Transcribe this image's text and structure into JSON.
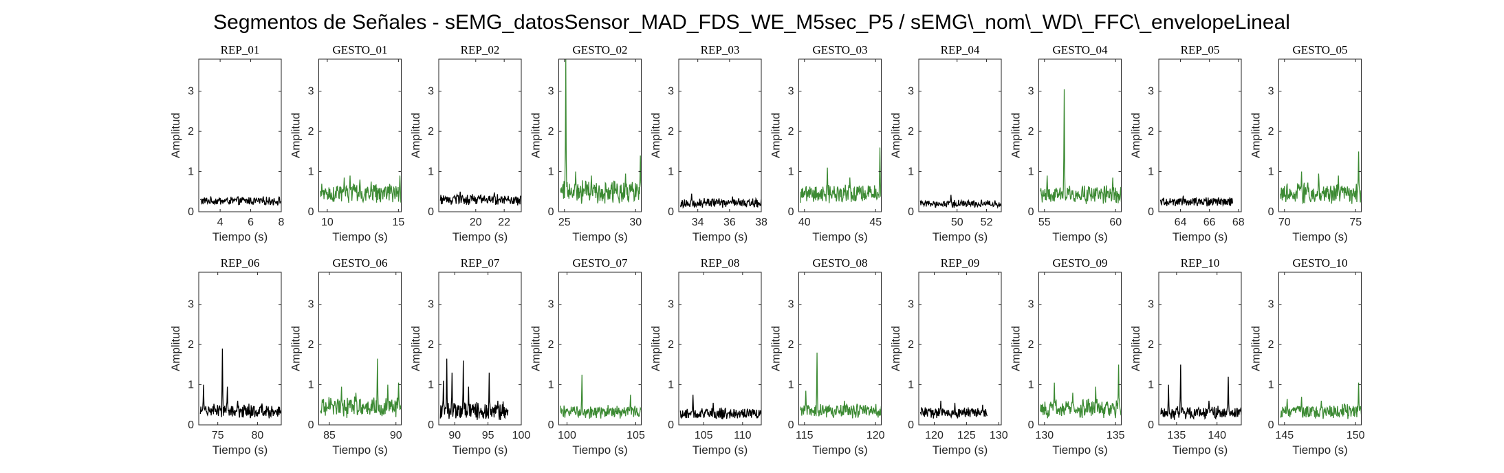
{
  "figure_title": "Segmentos de Señales - sEMG_datosSensor_MAD_FDS_WE_M5sec_P5 / sEMG\\_nom\\_WD\\_FFC\\_envelopeLineal",
  "colors": {
    "rep": "#000000",
    "gesto": "#3c8a33",
    "axis": "#262626"
  },
  "chart_data": [
    {
      "type": "line",
      "title": "REP_01",
      "xlabel": "Tiempo (s)",
      "ylabel": "Amplitud",
      "xlim": [
        2.6,
        8
      ],
      "ylim": [
        0,
        3.8
      ],
      "xticks": [
        4,
        6,
        8
      ],
      "yticks": [
        0,
        1,
        2,
        3
      ],
      "color": "rep",
      "mean": 0.27,
      "jitter": 0.09,
      "x_end": 8,
      "peaks": []
    },
    {
      "type": "line",
      "title": "GESTO_01",
      "xlabel": "Tiempo (s)",
      "ylabel": "Amplitud",
      "xlim": [
        9.4,
        15.2
      ],
      "ylim": [
        0,
        3.8
      ],
      "xticks": [
        10,
        15
      ],
      "yticks": [
        0,
        1,
        2,
        3
      ],
      "color": "gesto",
      "mean": 0.45,
      "jitter": 0.2,
      "x_end": 15.2,
      "peaks": [
        [
          11.2,
          0.85
        ],
        [
          11.6,
          0.9
        ],
        [
          12.3,
          0.8
        ],
        [
          13.1,
          0.75
        ],
        [
          15.1,
          0.9
        ]
      ]
    },
    {
      "type": "line",
      "title": "REP_02",
      "xlabel": "Tiempo (s)",
      "ylabel": "Amplitud",
      "xlim": [
        17.4,
        23.2
      ],
      "ylim": [
        0,
        3.8
      ],
      "xticks": [
        20,
        22
      ],
      "yticks": [
        0,
        1,
        2,
        3
      ],
      "color": "rep",
      "mean": 0.3,
      "jitter": 0.12,
      "x_end": 23.2,
      "peaks": [
        [
          18.9,
          0.5
        ],
        [
          21.3,
          0.48
        ]
      ]
    },
    {
      "type": "line",
      "title": "GESTO_02",
      "xlabel": "Tiempo (s)",
      "ylabel": "Amplitud",
      "xlim": [
        24.6,
        30.4
      ],
      "ylim": [
        0,
        3.8
      ],
      "xticks": [
        25,
        30
      ],
      "yticks": [
        0,
        1,
        2,
        3
      ],
      "color": "gesto",
      "mean": 0.5,
      "jitter": 0.25,
      "x_end": 30.4,
      "peaks": [
        [
          25.1,
          3.8
        ],
        [
          25.8,
          1.0
        ],
        [
          26.9,
          0.9
        ],
        [
          29.3,
          0.95
        ],
        [
          30.35,
          1.4
        ]
      ]
    },
    {
      "type": "line",
      "title": "REP_03",
      "xlabel": "Tiempo (s)",
      "ylabel": "Amplitud",
      "xlim": [
        32.8,
        38
      ],
      "ylim": [
        0,
        3.8
      ],
      "xticks": [
        34,
        36,
        38
      ],
      "yticks": [
        0,
        1,
        2,
        3
      ],
      "color": "rep",
      "mean": 0.22,
      "jitter": 0.1,
      "x_end": 38,
      "peaks": [
        [
          33.6,
          0.45
        ],
        [
          36.2,
          0.38
        ]
      ]
    },
    {
      "type": "line",
      "title": "GESTO_03",
      "xlabel": "Tiempo (s)",
      "ylabel": "Amplitud",
      "xlim": [
        39.6,
        45.4
      ],
      "ylim": [
        0,
        3.8
      ],
      "xticks": [
        40,
        45
      ],
      "yticks": [
        0,
        1,
        2,
        3
      ],
      "color": "gesto",
      "mean": 0.45,
      "jitter": 0.2,
      "x_end": 45.4,
      "peaks": [
        [
          41.6,
          1.1
        ],
        [
          43.2,
          0.85
        ],
        [
          45.3,
          1.6
        ]
      ]
    },
    {
      "type": "line",
      "title": "REP_04",
      "xlabel": "Tiempo (s)",
      "ylabel": "Amplitud",
      "xlim": [
        47.4,
        53
      ],
      "ylim": [
        0,
        3.8
      ],
      "xticks": [
        50,
        52
      ],
      "yticks": [
        0,
        1,
        2,
        3
      ],
      "color": "rep",
      "mean": 0.2,
      "jitter": 0.08,
      "x_end": 53,
      "peaks": [
        [
          49.6,
          0.42
        ]
      ]
    },
    {
      "type": "line",
      "title": "GESTO_04",
      "xlabel": "Tiempo (s)",
      "ylabel": "Amplitud",
      "xlim": [
        54.6,
        60.4
      ],
      "ylim": [
        0,
        3.8
      ],
      "xticks": [
        55,
        60
      ],
      "yticks": [
        0,
        1,
        2,
        3
      ],
      "color": "gesto",
      "mean": 0.42,
      "jitter": 0.2,
      "x_end": 60.4,
      "peaks": [
        [
          55.2,
          0.9
        ],
        [
          56.4,
          3.05
        ],
        [
          59.8,
          0.85
        ]
      ]
    },
    {
      "type": "line",
      "title": "REP_05",
      "xlabel": "Tiempo (s)",
      "ylabel": "Amplitud",
      "xlim": [
        62.5,
        68.2
      ],
      "ylim": [
        0,
        3.8
      ],
      "xticks": [
        64,
        66,
        68
      ],
      "yticks": [
        0,
        1,
        2,
        3
      ],
      "color": "rep",
      "mean": 0.25,
      "jitter": 0.09,
      "x_end": 67.6,
      "peaks": [
        [
          64.2,
          0.4
        ]
      ]
    },
    {
      "type": "line",
      "title": "GESTO_05",
      "xlabel": "Tiempo (s)",
      "ylabel": "Amplitud",
      "xlim": [
        69.6,
        75.4
      ],
      "ylim": [
        0,
        3.8
      ],
      "xticks": [
        70,
        75
      ],
      "yticks": [
        0,
        1,
        2,
        3
      ],
      "color": "gesto",
      "mean": 0.45,
      "jitter": 0.22,
      "x_end": 75.4,
      "peaks": [
        [
          71.2,
          1.0
        ],
        [
          72.4,
          0.95
        ],
        [
          73.8,
          0.9
        ],
        [
          75.2,
          1.5
        ]
      ]
    },
    {
      "type": "line",
      "title": "REP_06",
      "xlabel": "Tiempo (s)",
      "ylabel": "Amplitud",
      "xlim": [
        72.6,
        83
      ],
      "ylim": [
        0,
        3.8
      ],
      "xticks": [
        75,
        80
      ],
      "yticks": [
        0,
        1,
        2,
        3
      ],
      "color": "rep",
      "mean": 0.35,
      "jitter": 0.15,
      "x_end": 83,
      "peaks": [
        [
          73.2,
          1.0
        ],
        [
          75.6,
          1.9
        ],
        [
          76.2,
          0.95
        ],
        [
          77.5,
          0.6
        ]
      ]
    },
    {
      "type": "line",
      "title": "GESTO_06",
      "xlabel": "Tiempo (s)",
      "ylabel": "Amplitud",
      "xlim": [
        84.2,
        90.4
      ],
      "ylim": [
        0,
        3.8
      ],
      "xticks": [
        85,
        90
      ],
      "yticks": [
        0,
        1,
        2,
        3
      ],
      "color": "gesto",
      "mean": 0.45,
      "jitter": 0.22,
      "x_end": 90.4,
      "peaks": [
        [
          85.9,
          0.95
        ],
        [
          87.0,
          0.8
        ],
        [
          88.6,
          1.65
        ],
        [
          89.4,
          1.0
        ],
        [
          90.2,
          1.05
        ]
      ]
    },
    {
      "type": "line",
      "title": "REP_07",
      "xlabel": "Tiempo (s)",
      "ylabel": "Amplitud",
      "xlim": [
        87.6,
        100
      ],
      "ylim": [
        0,
        3.8
      ],
      "xticks": [
        90,
        95,
        100
      ],
      "yticks": [
        0,
        1,
        2,
        3
      ],
      "color": "rep",
      "mean": 0.35,
      "jitter": 0.2,
      "x_end": 98,
      "peaks": [
        [
          88.3,
          1.1
        ],
        [
          88.8,
          1.65
        ],
        [
          89.6,
          1.3
        ],
        [
          91.3,
          1.6
        ],
        [
          92.1,
          0.95
        ],
        [
          95.2,
          1.3
        ],
        [
          96.5,
          0.6
        ]
      ]
    },
    {
      "type": "line",
      "title": "GESTO_07",
      "xlabel": "Tiempo (s)",
      "ylabel": "Amplitud",
      "xlim": [
        99.4,
        105.4
      ],
      "ylim": [
        0,
        3.8
      ],
      "xticks": [
        100,
        105
      ],
      "yticks": [
        0,
        1,
        2,
        3
      ],
      "color": "gesto",
      "mean": 0.32,
      "jitter": 0.14,
      "x_end": 105.4,
      "peaks": [
        [
          101.1,
          1.25
        ],
        [
          104.6,
          0.75
        ]
      ]
    },
    {
      "type": "line",
      "title": "REP_08",
      "xlabel": "Tiempo (s)",
      "ylabel": "Amplitud",
      "xlim": [
        101.8,
        112.4
      ],
      "ylim": [
        0,
        3.8
      ],
      "xticks": [
        105,
        110
      ],
      "yticks": [
        0,
        1,
        2,
        3
      ],
      "color": "rep",
      "mean": 0.28,
      "jitter": 0.12,
      "x_end": 112.4,
      "peaks": [
        [
          103.6,
          0.75
        ],
        [
          106.2,
          0.55
        ]
      ]
    },
    {
      "type": "line",
      "title": "GESTO_08",
      "xlabel": "Tiempo (s)",
      "ylabel": "Amplitud",
      "xlim": [
        114.6,
        120.4
      ],
      "ylim": [
        0,
        3.8
      ],
      "xticks": [
        115,
        120
      ],
      "yticks": [
        0,
        1,
        2,
        3
      ],
      "color": "gesto",
      "mean": 0.35,
      "jitter": 0.15,
      "x_end": 120.4,
      "peaks": [
        [
          115.1,
          0.85
        ],
        [
          115.9,
          1.8
        ],
        [
          117.8,
          0.6
        ]
      ]
    },
    {
      "type": "line",
      "title": "REP_09",
      "xlabel": "Tiempo (s)",
      "ylabel": "Amplitud",
      "xlim": [
        117.6,
        130.4
      ],
      "ylim": [
        0,
        3.8
      ],
      "xticks": [
        120,
        125,
        130
      ],
      "yticks": [
        0,
        1,
        2,
        3
      ],
      "color": "rep",
      "mean": 0.3,
      "jitter": 0.12,
      "x_end": 128.2,
      "peaks": [
        [
          121.0,
          0.6
        ],
        [
          123.2,
          0.55
        ],
        [
          127.5,
          0.5
        ]
      ]
    },
    {
      "type": "line",
      "title": "GESTO_09",
      "xlabel": "Tiempo (s)",
      "ylabel": "Amplitud",
      "xlim": [
        129.6,
        135.4
      ],
      "ylim": [
        0,
        3.8
      ],
      "xticks": [
        130,
        135
      ],
      "yticks": [
        0,
        1,
        2,
        3
      ],
      "color": "gesto",
      "mean": 0.4,
      "jitter": 0.2,
      "x_end": 135.4,
      "peaks": [
        [
          130.7,
          1.05
        ],
        [
          132.0,
          0.8
        ],
        [
          133.6,
          0.95
        ],
        [
          135.2,
          1.5
        ]
      ]
    },
    {
      "type": "line",
      "title": "REP_10",
      "xlabel": "Tiempo (s)",
      "ylabel": "Amplitud",
      "xlim": [
        132.8,
        143
      ],
      "ylim": [
        0,
        3.8
      ],
      "xticks": [
        135,
        140
      ],
      "yticks": [
        0,
        1,
        2,
        3
      ],
      "color": "rep",
      "mean": 0.3,
      "jitter": 0.14,
      "x_end": 143,
      "peaks": [
        [
          134.0,
          1.0
        ],
        [
          135.5,
          1.5
        ],
        [
          141.4,
          1.2
        ],
        [
          139.0,
          0.6
        ]
      ]
    },
    {
      "type": "line",
      "title": "GESTO_10",
      "xlabel": "Tiempo (s)",
      "ylabel": "Amplitud",
      "xlim": [
        144.6,
        150.4
      ],
      "ylim": [
        0,
        3.8
      ],
      "xticks": [
        145,
        150
      ],
      "yticks": [
        0,
        1,
        2,
        3
      ],
      "color": "gesto",
      "mean": 0.33,
      "jitter": 0.15,
      "x_end": 150.4,
      "peaks": [
        [
          145.2,
          0.65
        ],
        [
          146.2,
          0.7
        ],
        [
          147.6,
          0.6
        ],
        [
          150.2,
          1.05
        ]
      ]
    }
  ]
}
